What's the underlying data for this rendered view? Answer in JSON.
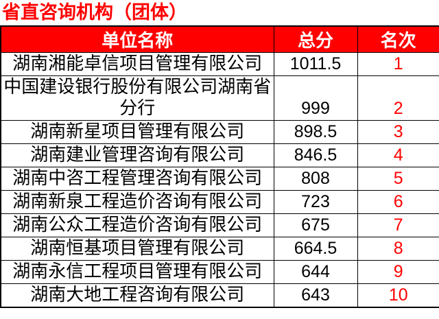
{
  "title": "省直咨询机构（团体）",
  "colors": {
    "accent_red": "#FF0000",
    "header_bg": "#FF0000",
    "header_text": "#FFFFFF",
    "rank_text": "#FF0000",
    "body_text": "#000000",
    "border": "#000000"
  },
  "table": {
    "headers": [
      "单位名称",
      "总分",
      "名次"
    ],
    "rows": [
      {
        "name": "湖南湘能卓信项目管理有限公司",
        "score": "1011.5",
        "rank": "1"
      },
      {
        "name": "中国建设银行股份有限公司湖南省分行",
        "score": "999",
        "rank": "2"
      },
      {
        "name": "湖南新星项目管理有限公司",
        "score": "898.5",
        "rank": "3"
      },
      {
        "name": "湖南建业管理咨询有限公司",
        "score": "846.5",
        "rank": "4"
      },
      {
        "name": "湖南中咨工程管理咨询有限公司",
        "score": "808",
        "rank": "5"
      },
      {
        "name": "湖南新泉工程造价咨询有限公司",
        "score": "723",
        "rank": "6"
      },
      {
        "name": "湖南公众工程造价咨询有限公司",
        "score": "675",
        "rank": "7"
      },
      {
        "name": "湖南恒基项目管理有限公司",
        "score": "664.5",
        "rank": "8"
      },
      {
        "name": "湖南永信工程项目管理有限公司",
        "score": "644",
        "rank": "9"
      },
      {
        "name": "湖南大地工程咨询有限公司",
        "score": "643",
        "rank": "10"
      }
    ]
  }
}
